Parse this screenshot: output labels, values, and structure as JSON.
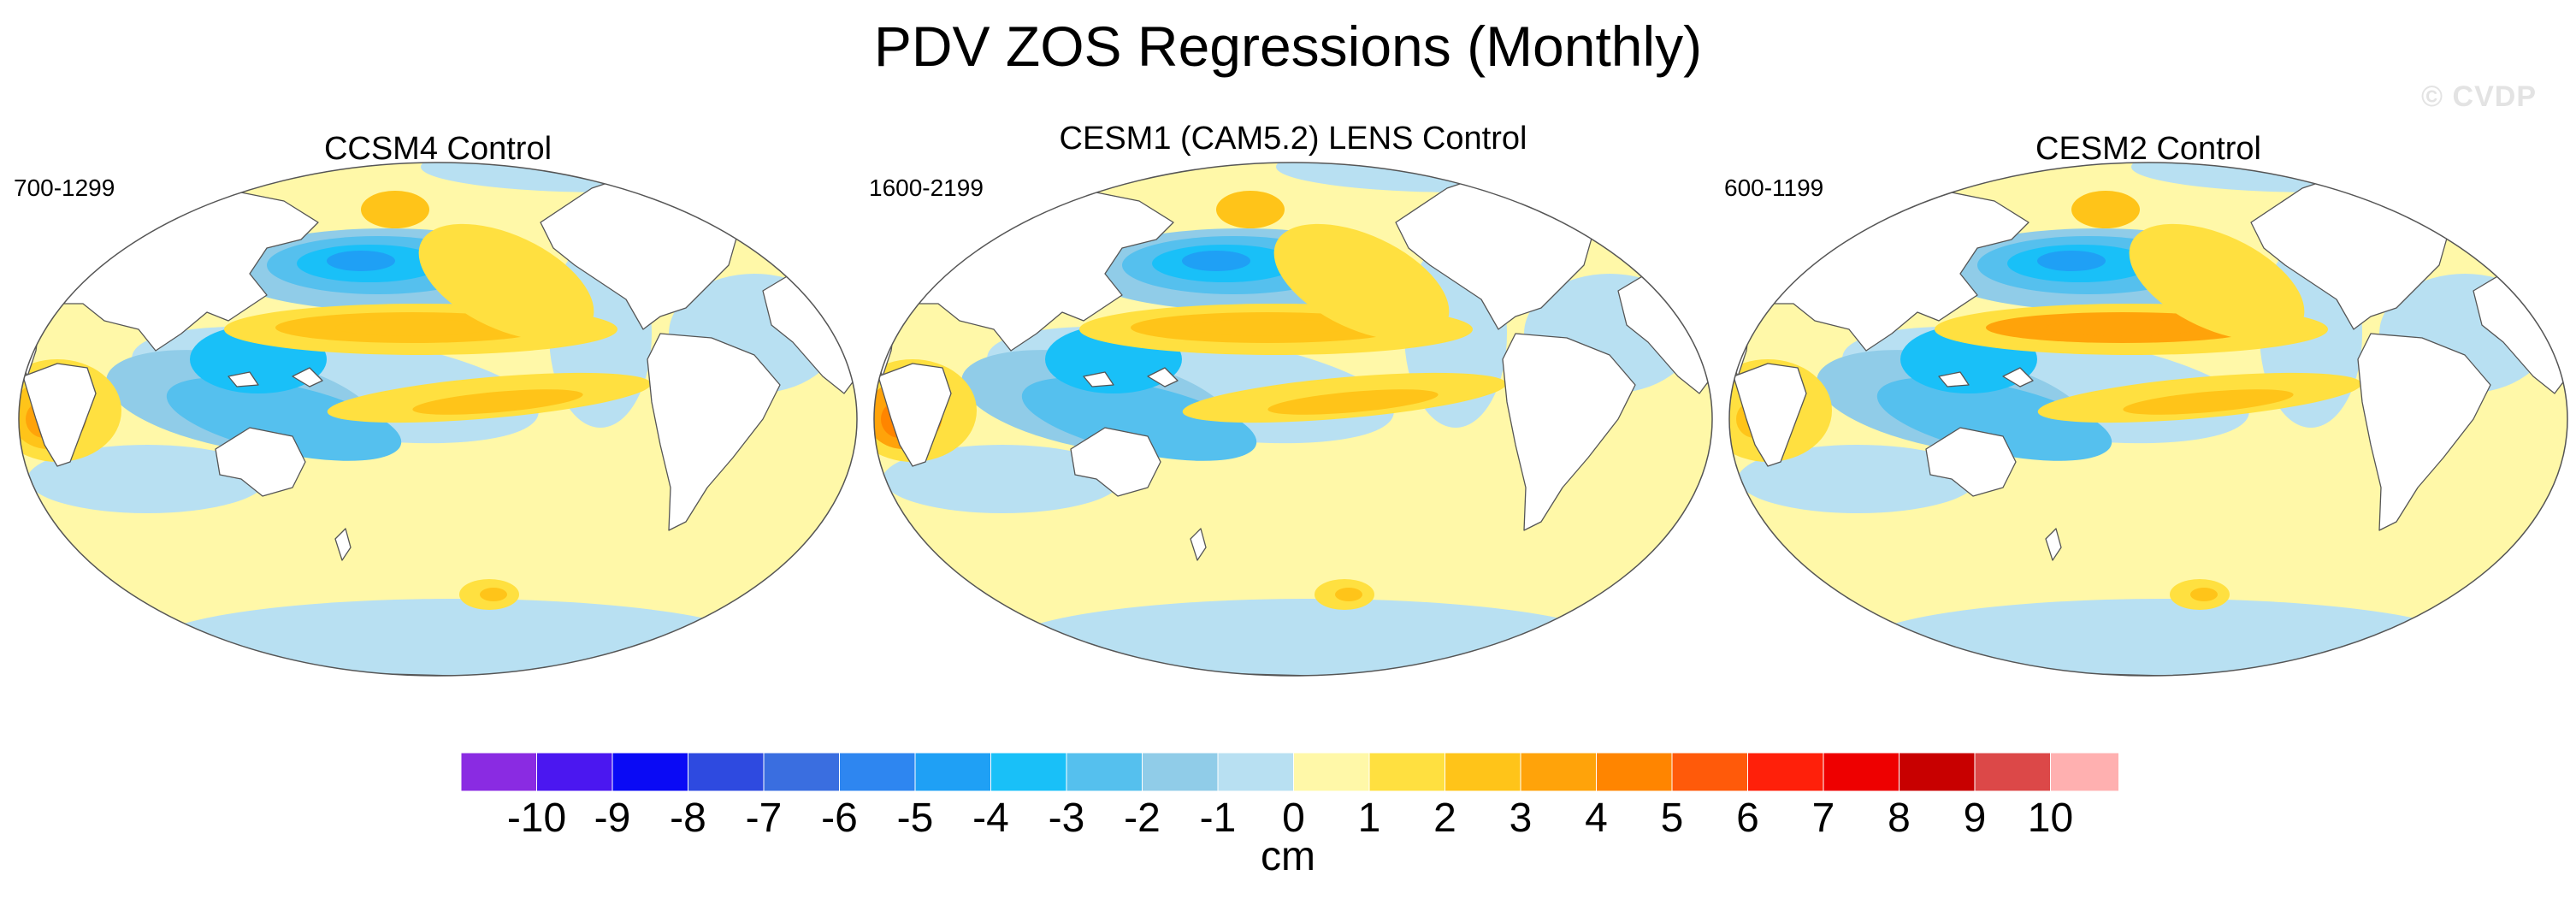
{
  "chart_data": {
    "type": "map",
    "title": "PDV ZOS Regressions (Monthly)",
    "watermark": "© CVDP",
    "panels": [
      {
        "name": "ccsm4",
        "title": "CCSM4 Control",
        "period": "700-1299",
        "eq_pacific_max": 2.5,
        "benguela_max": 3.5,
        "nw_pacific_min": -5
      },
      {
        "name": "cesm1",
        "title": "CESM1 (CAM5.2) LENS Control",
        "period": "1600-2199",
        "eq_pacific_max": 2.5,
        "benguela_max": 4.5,
        "nw_pacific_min": -5
      },
      {
        "name": "cesm2",
        "title": "CESM2 Control",
        "period": "600-1199",
        "eq_pacific_max": 3.5,
        "benguela_max": 2.5,
        "nw_pacific_min": -5
      }
    ],
    "colorbar": {
      "units": "cm",
      "levels": [
        "-10",
        "-9",
        "-8",
        "-7",
        "-6",
        "-5",
        "-4",
        "-3",
        "-2",
        "-1",
        "0",
        "1",
        "2",
        "3",
        "4",
        "5",
        "6",
        "7",
        "8",
        "9",
        "10"
      ],
      "colors": [
        "#8a2be2",
        "#4b17f0",
        "#0a0af5",
        "#2e4ae0",
        "#3a6ee0",
        "#2e86f0",
        "#1fa0f5",
        "#19c0f8",
        "#55c0ee",
        "#90cce8",
        "#b8e0f2",
        "#fff8a8",
        "#ffe040",
        "#ffc419",
        "#ffa30a",
        "#ff8500",
        "#ff5a0a",
        "#ff200a",
        "#ee0000",
        "#c80000",
        "#dc4848",
        "#ffb0b0"
      ]
    }
  }
}
